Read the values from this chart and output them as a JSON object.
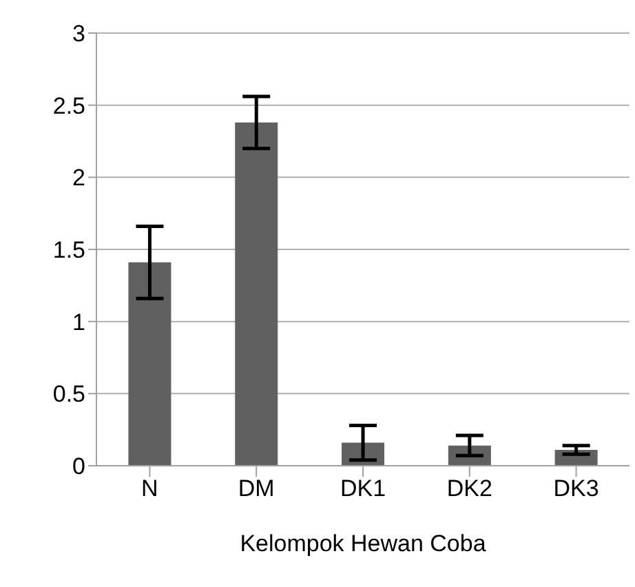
{
  "chart_data": {
    "type": "bar",
    "xlabel": "Kelompok Hewan Coba",
    "categories": [
      "N",
      "DM",
      "DK1",
      "DK2",
      "DK3"
    ],
    "values": [
      1.41,
      2.38,
      0.16,
      0.14,
      0.11
    ],
    "errors": [
      0.25,
      0.18,
      0.12,
      0.07,
      0.03
    ],
    "color": "#606060",
    "ylim": [
      0,
      3
    ],
    "yticks": [
      0,
      0.5,
      1,
      1.5,
      2,
      2.5,
      3
    ],
    "grid": "y",
    "legend": false
  }
}
